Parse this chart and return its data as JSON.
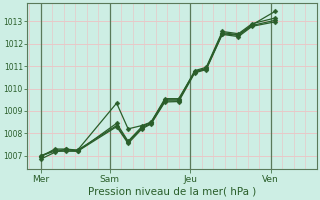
{
  "xlabel": "Pression niveau de la mer( hPa )",
  "background_color": "#cdeee4",
  "plot_bg_color": "#cdeee4",
  "grid_color": "#e8c8c8",
  "line_color": "#2a5e2a",
  "vline_color": "#5a7a5a",
  "ylim": [
    1006.4,
    1013.8
  ],
  "yticks": [
    1007,
    1008,
    1009,
    1010,
    1011,
    1012,
    1013
  ],
  "xtick_labels": [
    "Mer",
    "Sam",
    "Jeu",
    "Ven"
  ],
  "xtick_positions": [
    0.5,
    3.5,
    7.0,
    10.5
  ],
  "vline_positions": [
    0.5,
    3.5,
    7.0,
    10.5
  ],
  "xlim": [
    -0.1,
    12.5
  ],
  "series": [
    [
      1006.85,
      1007.15,
      1007.3,
      1007.25,
      1009.35,
      1008.2,
      1008.35,
      1008.5,
      1009.55,
      1009.55,
      1010.75,
      1010.9,
      1012.5,
      1012.4,
      1012.85,
      1013.45
    ],
    [
      1006.95,
      1007.3,
      1007.3,
      1007.2,
      1008.45,
      1007.65,
      1008.3,
      1008.5,
      1009.5,
      1009.5,
      1010.8,
      1010.95,
      1012.55,
      1012.45,
      1012.9,
      1013.15
    ],
    [
      1007.0,
      1007.25,
      1007.25,
      1007.25,
      1008.35,
      1007.6,
      1008.25,
      1008.45,
      1009.45,
      1009.45,
      1010.75,
      1010.88,
      1012.45,
      1012.38,
      1012.82,
      1013.05
    ],
    [
      1007.0,
      1007.2,
      1007.2,
      1007.2,
      1008.3,
      1007.55,
      1008.2,
      1008.42,
      1009.4,
      1009.42,
      1010.7,
      1010.85,
      1012.42,
      1012.32,
      1012.78,
      1012.98
    ]
  ],
  "x_positions": [
    0.5,
    1.1,
    1.6,
    2.1,
    3.8,
    4.3,
    4.9,
    5.3,
    5.9,
    6.5,
    7.2,
    7.7,
    8.4,
    9.1,
    9.7,
    10.7
  ]
}
